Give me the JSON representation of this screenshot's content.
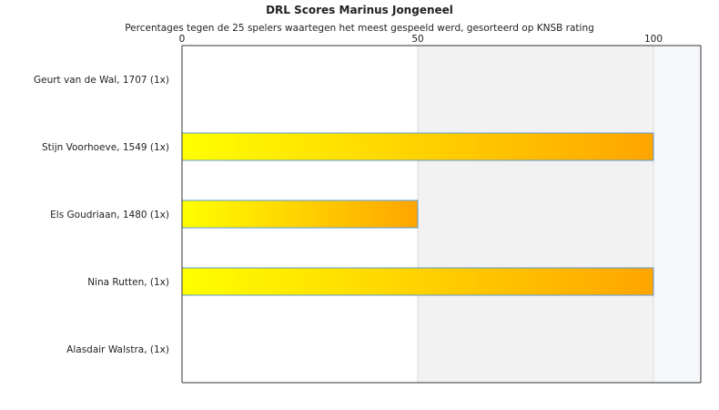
{
  "chart_data": {
    "type": "bar",
    "orientation": "horizontal",
    "title": "DRL Scores Marinus Jongeneel",
    "subtitle": "Percentages tegen de 25 spelers waartegen het meest gespeeld werd, gesorteerd op KNSB rating",
    "categories": [
      "Geurt van de Wal, 1707 (1x)",
      "Stijn Voorhoeve, 1549 (1x)",
      "Els Goudriaan, 1480 (1x)",
      "Nina Rutten,  (1x)",
      "Alasdair Walstra,  (1x)"
    ],
    "values": [
      0,
      100,
      50,
      100,
      0
    ],
    "xlim": [
      0,
      110
    ],
    "xticks": [
      0,
      50,
      100
    ],
    "xtick_labels": [
      "0",
      "50",
      "100"
    ],
    "xaxis_position": "top",
    "grid": "vertical-bands",
    "colors": {
      "bar_start": "#ffff00",
      "bar_end": "#ffa500",
      "bar_edge": "#5b9bd5",
      "band": "#f2f2f2",
      "band_light": "#f6f8fb",
      "axis": "#333333"
    }
  }
}
